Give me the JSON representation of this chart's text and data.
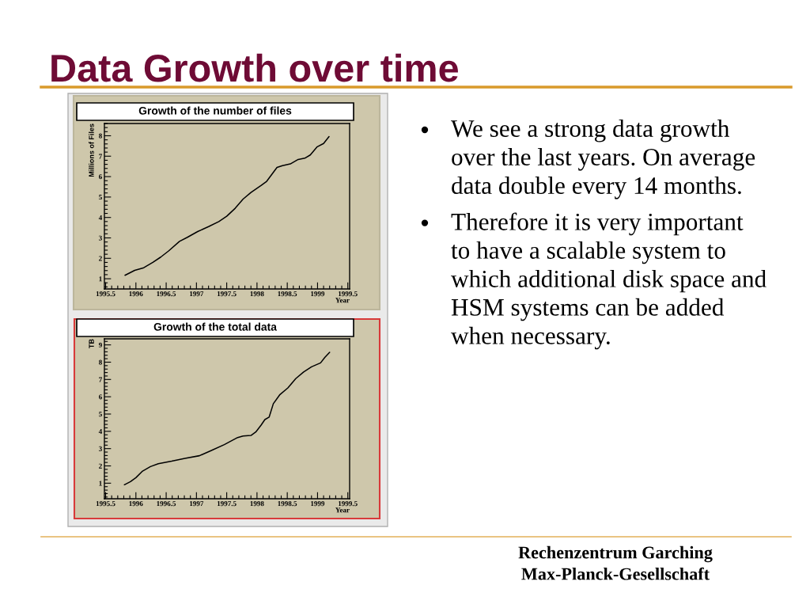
{
  "chart_data": [
    {
      "type": "other",
      "title": "Data Growth over time",
      "annotations": [
        "We see a strong data growth\nover the last years. On average\ndata double every 14 months.",
        "Therefore it is very important\nto have a scalable system to\nwhich additional disk space and\nHSM systems can be added\nwhen necessary."
      ]
    },
    {
      "type": "line",
      "title": "Growth of the number of files",
      "xlabel": "Year",
      "ylabel": "Millions of Files",
      "x": [
        1995.82,
        1995.98,
        1996.13,
        1996.28,
        1996.41,
        1996.54,
        1996.72,
        1996.85,
        1997.02,
        1997.2,
        1997.37,
        1997.5,
        1997.64,
        1997.77,
        1997.9,
        1998.07,
        1998.16,
        1998.25,
        1998.33,
        1998.42,
        1998.55,
        1998.68,
        1998.79,
        1998.88,
        1998.99,
        1999.1,
        1999.19
      ],
      "values": [
        1.17,
        1.41,
        1.54,
        1.8,
        2.06,
        2.36,
        2.83,
        3.03,
        3.31,
        3.55,
        3.8,
        4.06,
        4.45,
        4.9,
        5.22,
        5.57,
        5.77,
        6.13,
        6.45,
        6.54,
        6.62,
        6.84,
        6.9,
        7.06,
        7.45,
        7.62,
        7.96
      ],
      "color": "#000000",
      "xlim": [
        1995.48,
        1999.53
      ],
      "ylim": [
        0.5,
        8.6
      ],
      "xticks": [
        1995.5,
        1996,
        1996.5,
        1997,
        1997.5,
        1998,
        1998.5,
        1999,
        1999.5
      ],
      "yticks": [
        1,
        2,
        3,
        4,
        5,
        6,
        7,
        8
      ]
    },
    {
      "type": "line",
      "title": "Growth of the total data",
      "xlabel": "Year",
      "ylabel": "TB",
      "x": [
        1995.81,
        1995.91,
        1996.0,
        1996.11,
        1996.24,
        1996.37,
        1996.59,
        1996.81,
        1997.05,
        1997.24,
        1997.46,
        1997.68,
        1997.77,
        1997.9,
        1997.98,
        1998.07,
        1998.13,
        1998.2,
        1998.27,
        1998.38,
        1998.51,
        1998.64,
        1998.77,
        1998.9,
        1999.05,
        1999.12,
        1999.2
      ],
      "values": [
        0.91,
        1.09,
        1.32,
        1.7,
        1.96,
        2.13,
        2.27,
        2.44,
        2.59,
        2.88,
        3.23,
        3.64,
        3.73,
        3.76,
        3.96,
        4.37,
        4.68,
        4.82,
        5.6,
        6.13,
        6.51,
        7.05,
        7.43,
        7.73,
        7.96,
        8.27,
        8.57
      ],
      "color": "#000000",
      "xlim": [
        1995.48,
        1999.53
      ],
      "ylim": [
        0.1,
        9.35
      ],
      "xticks": [
        1995.5,
        1996,
        1996.5,
        1997,
        1997.5,
        1998,
        1998.5,
        1999,
        1999.5
      ],
      "yticks": [
        1,
        2,
        3,
        4,
        5,
        6,
        7,
        8,
        9
      ]
    },
    {
      "type": "other",
      "annotations": [
        "Rechenzentrum Garching",
        "Max-Planck-Gesellschaft"
      ]
    }
  ]
}
